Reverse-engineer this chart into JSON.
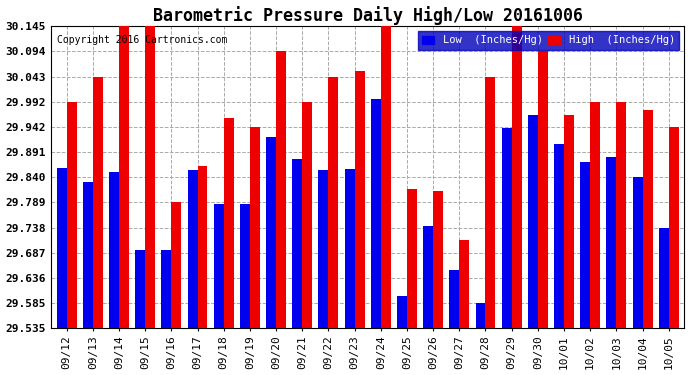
{
  "title": "Barometric Pressure Daily High/Low 20161006",
  "copyright": "Copyright 2016 Cartronics.com",
  "dates": [
    "09/12",
    "09/13",
    "09/14",
    "09/15",
    "09/16",
    "09/17",
    "09/18",
    "09/19",
    "09/20",
    "09/21",
    "09/22",
    "09/23",
    "09/24",
    "09/25",
    "09/26",
    "09/27",
    "09/28",
    "09/29",
    "09/30",
    "10/01",
    "10/02",
    "10/03",
    "10/04",
    "10/05"
  ],
  "low": [
    29.858,
    29.831,
    29.85,
    29.693,
    29.693,
    29.855,
    29.786,
    29.786,
    29.921,
    29.876,
    29.854,
    29.857,
    29.997,
    29.6,
    29.741,
    29.652,
    29.585,
    29.94,
    29.965,
    29.906,
    29.87,
    29.88,
    29.84,
    29.738
  ],
  "high": [
    29.992,
    30.043,
    30.145,
    30.145,
    29.789,
    29.862,
    29.96,
    29.942,
    30.094,
    29.992,
    30.043,
    30.055,
    30.145,
    29.815,
    29.812,
    29.712,
    30.043,
    30.145,
    30.094,
    29.965,
    29.992,
    29.992,
    29.975,
    29.942
  ],
  "ymin": 29.535,
  "ymax": 30.145,
  "yticks": [
    29.535,
    29.585,
    29.636,
    29.687,
    29.738,
    29.789,
    29.84,
    29.891,
    29.942,
    29.992,
    30.043,
    30.094,
    30.145
  ],
  "low_color": "#0000EE",
  "high_color": "#EE0000",
  "bg_color": "#FFFFFF",
  "grid_color": "#AAAAAA",
  "title_fontsize": 12,
  "tick_fontsize": 8,
  "bar_width": 0.38,
  "legend_bg": "#0000BB"
}
